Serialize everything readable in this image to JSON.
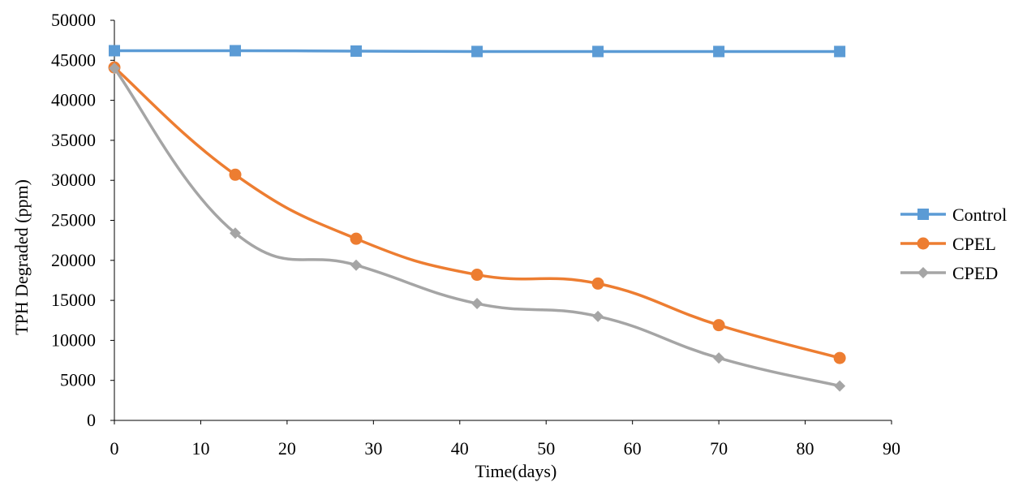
{
  "chart_data": {
    "type": "line",
    "title": "",
    "xlabel": "Time(days)",
    "ylabel": "TPH Degraded (ppm)",
    "xlim": [
      0,
      90
    ],
    "ylim": [
      0,
      50000
    ],
    "x_ticks": [
      0,
      10,
      20,
      30,
      40,
      50,
      60,
      70,
      80,
      90
    ],
    "y_ticks": [
      0,
      5000,
      10000,
      15000,
      20000,
      25000,
      30000,
      35000,
      40000,
      45000,
      50000
    ],
    "grid": false,
    "legend_position": "right",
    "series": [
      {
        "name": "Control",
        "color": "#5B9BD5",
        "marker": "square",
        "smooth": true,
        "x": [
          0,
          14,
          28,
          42,
          56,
          70,
          84
        ],
        "y": [
          46200,
          46200,
          46150,
          46100,
          46100,
          46100,
          46100
        ]
      },
      {
        "name": "CPEL",
        "color": "#ED7D31",
        "marker": "circle",
        "smooth": true,
        "x": [
          0,
          14,
          28,
          42,
          56,
          70,
          84
        ],
        "y": [
          44100,
          30700,
          22700,
          18200,
          17100,
          11900,
          7800
        ]
      },
      {
        "name": "CPED",
        "color": "#A5A5A5",
        "marker": "diamond",
        "smooth": true,
        "x": [
          0,
          14,
          28,
          42,
          56,
          70,
          84
        ],
        "y": [
          44000,
          23400,
          19400,
          14600,
          13000,
          7800,
          4300
        ]
      }
    ]
  }
}
